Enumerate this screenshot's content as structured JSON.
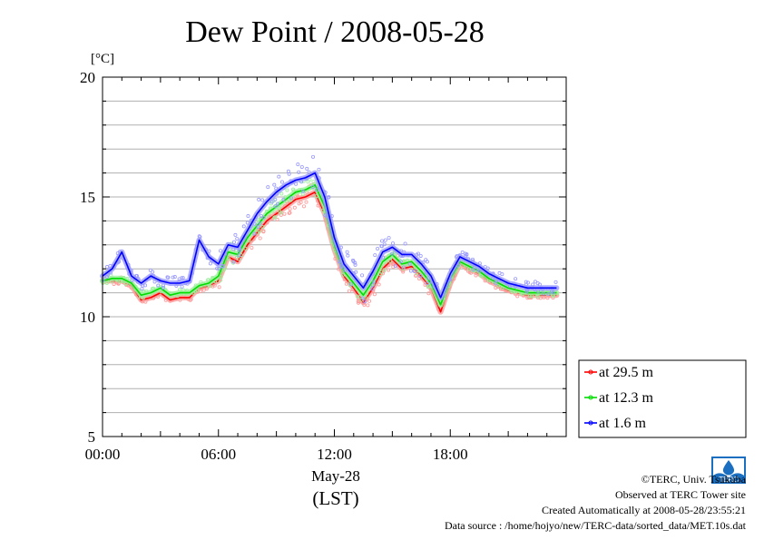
{
  "chart_data": {
    "type": "line",
    "title": "Dew Point / 2008-05-28",
    "ylabel": "[°C]",
    "xlabel_date": "May-28",
    "xlabel_tz": "(LST)",
    "ylim": [
      5,
      20
    ],
    "xlim": [
      0,
      24
    ],
    "yticks": [
      5,
      10,
      15,
      20
    ],
    "yminor_step": 1,
    "ytick_labels": [
      "5",
      "10",
      "15",
      "20"
    ],
    "xticks": [
      0,
      6,
      12,
      18
    ],
    "xtick_labels": [
      "00:00",
      "06:00",
      "12:00",
      "18:00"
    ],
    "grid": true,
    "legend_position": "right",
    "x": [
      0,
      0.5,
      1,
      1.5,
      2,
      2.5,
      3,
      3.5,
      4,
      4.5,
      5,
      5.5,
      6,
      6.5,
      7,
      7.5,
      8,
      8.5,
      9,
      9.5,
      10,
      10.5,
      11,
      11.5,
      12,
      12.5,
      13,
      13.5,
      14,
      14.5,
      15,
      15.5,
      16,
      16.5,
      17,
      17.5,
      18,
      18.5,
      19,
      19.5,
      20,
      20.5,
      21,
      21.5,
      22,
      22.5,
      23,
      23.5
    ],
    "series": [
      {
        "name": "at 29.5 m",
        "color": "#ff0000",
        "values": [
          11.5,
          11.5,
          11.5,
          11.3,
          10.7,
          10.8,
          11.0,
          10.7,
          10.8,
          10.8,
          11.2,
          11.3,
          11.5,
          12.5,
          12.3,
          13.0,
          13.5,
          14.0,
          14.3,
          14.6,
          14.9,
          15.0,
          15.2,
          14.3,
          12.8,
          11.7,
          11.2,
          10.6,
          11.2,
          12.0,
          12.4,
          12.0,
          12.1,
          11.7,
          11.2,
          10.2,
          11.4,
          12.2,
          12.0,
          11.8,
          11.5,
          11.3,
          11.1,
          11.0,
          10.9,
          10.9,
          10.9,
          10.9
        ]
      },
      {
        "name": "at 12.3 m",
        "color": "#00dd00",
        "values": [
          11.5,
          11.6,
          11.6,
          11.4,
          10.9,
          11.0,
          11.2,
          10.9,
          11.0,
          11.0,
          11.3,
          11.4,
          11.7,
          12.7,
          12.6,
          13.3,
          13.8,
          14.3,
          14.6,
          14.9,
          15.2,
          15.3,
          15.5,
          14.6,
          13.0,
          11.9,
          11.4,
          10.9,
          11.5,
          12.3,
          12.6,
          12.2,
          12.3,
          11.9,
          11.4,
          10.5,
          11.6,
          12.3,
          12.1,
          11.9,
          11.6,
          11.4,
          11.2,
          11.1,
          11.0,
          11.0,
          11.0,
          11.0
        ]
      },
      {
        "name": "at 1.6 m",
        "color": "#0000ff",
        "values": [
          11.7,
          12.0,
          12.7,
          11.7,
          11.4,
          11.7,
          11.5,
          11.4,
          11.4,
          11.5,
          13.2,
          12.5,
          12.2,
          13.0,
          12.9,
          13.6,
          14.3,
          14.8,
          15.2,
          15.5,
          15.7,
          15.8,
          16.0,
          15.0,
          13.3,
          12.2,
          11.7,
          11.2,
          11.9,
          12.7,
          12.9,
          12.6,
          12.6,
          12.2,
          11.7,
          10.8,
          11.8,
          12.5,
          12.3,
          12.1,
          11.8,
          11.6,
          11.4,
          11.3,
          11.2,
          11.2,
          11.2,
          11.2
        ]
      }
    ]
  },
  "legend": {
    "items": [
      {
        "label": "at 29.5 m",
        "color": "#ff0000"
      },
      {
        "label": "at 12.3 m",
        "color": "#00dd00"
      },
      {
        "label": "at 1.6 m",
        "color": "#0000ff"
      }
    ]
  },
  "credits": {
    "copyright": "©TERC, Univ. Tsukuba",
    "observed": "Observed at TERC Tower site",
    "created": "Created Automatically at 2008-05-28/23:55:21",
    "source": "Data source : /home/hojyo/new/TERC-data/sorted_data/MET.10s.dat",
    "logo_text": "TERC",
    "logo_color": "#1a6fc0"
  }
}
